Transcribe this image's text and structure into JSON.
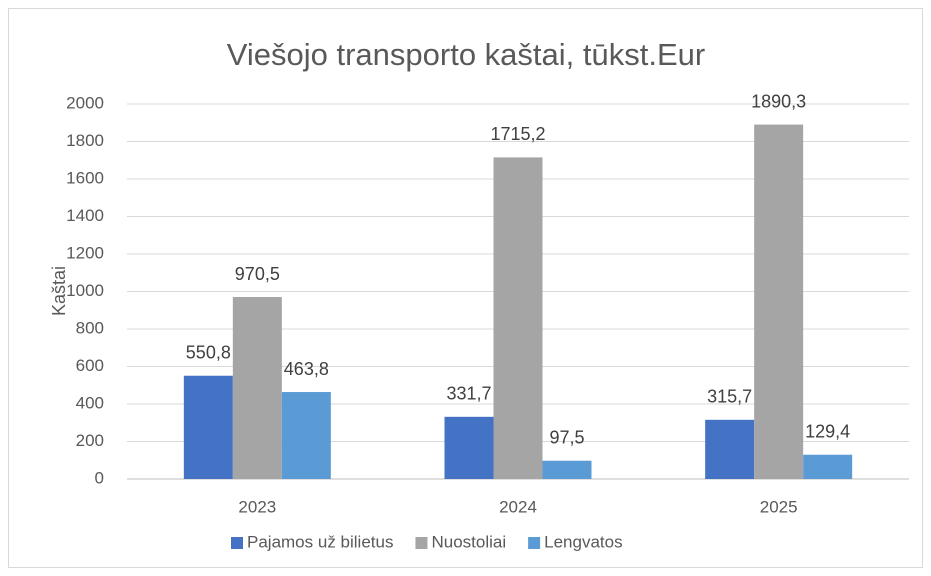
{
  "chart_data": {
    "type": "bar",
    "title": "Viešojo transporto kaštai, tūkst.Eur",
    "y_label": "Kaštai",
    "categories": [
      "2023",
      "2024",
      "2025"
    ],
    "series": [
      {
        "name": "Pajamos už bilietus",
        "color": "#4472c4",
        "values": [
          550.8,
          331.7,
          315.7
        ],
        "value_labels": [
          "550,8",
          "331,7",
          "315,7"
        ]
      },
      {
        "name": "Nuostoliai",
        "color": "#a5a5a5",
        "values": [
          970.5,
          1715.2,
          1890.3
        ],
        "value_labels": [
          "970,5",
          "1715,2",
          "1890,3"
        ]
      },
      {
        "name": "Lengvatos",
        "color": "#5b9bd5",
        "values": [
          463.8,
          97.5,
          129.4
        ],
        "value_labels": [
          "463,8",
          "97,5",
          "129,4"
        ]
      }
    ],
    "ylim": [
      0,
      2000
    ],
    "yticks": [
      0,
      200,
      400,
      600,
      800,
      1000,
      1200,
      1400,
      1600,
      1800,
      2000
    ],
    "grid": true,
    "legend": "bottom"
  }
}
